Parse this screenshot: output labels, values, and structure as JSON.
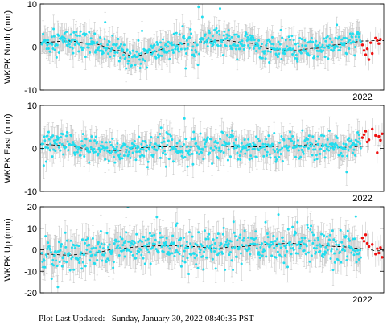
{
  "footer": {
    "label": "Plot Last Updated:",
    "value": "Sunday, January 30, 2022 08:40:35 PST"
  },
  "colors": {
    "point": "#22ddee",
    "recent_point": "#ee1111",
    "error_bar": "#c8c8c8",
    "model_line": "#000000"
  },
  "chart_data": [
    {
      "type": "scatter",
      "station": "WKPK",
      "ylabel": "WKPK North (mm)",
      "ylim": [
        -10,
        10
      ],
      "yticks": [
        -10,
        0,
        10
      ],
      "x_tick_label": "2022",
      "xlim": [
        2020.03,
        2022.12
      ],
      "model_points": [
        [
          2020.05,
          1.1
        ],
        [
          2020.2,
          1.4
        ],
        [
          2020.35,
          0.8
        ],
        [
          2020.5,
          -0.8
        ],
        [
          2020.6,
          -2.2
        ],
        [
          2020.7,
          -1.3
        ],
        [
          2020.85,
          0.5
        ],
        [
          2021.0,
          1.2
        ],
        [
          2021.15,
          1.5
        ],
        [
          2021.3,
          0.9
        ],
        [
          2021.45,
          -0.6
        ],
        [
          2021.55,
          -0.9
        ],
        [
          2021.7,
          -0.3
        ],
        [
          2021.85,
          0.6
        ],
        [
          2022.0,
          1.4
        ],
        [
          2022.08,
          1.5
        ]
      ],
      "noise_sd": 1.4,
      "error_bar_mm": 2.5,
      "recent_start": 2021.98,
      "recent_points": [
        [
          2021.99,
          0.5
        ],
        [
          2022.0,
          -0.8
        ],
        [
          2022.01,
          -1.8
        ],
        [
          2022.02,
          -0.4
        ],
        [
          2022.03,
          -2.9
        ],
        [
          2022.04,
          1.0
        ],
        [
          2022.05,
          -1.5
        ],
        [
          2022.07,
          2.1
        ],
        [
          2022.08,
          1.5
        ],
        [
          2022.09,
          0.8
        ],
        [
          2022.1,
          1.8
        ]
      ]
    },
    {
      "type": "scatter",
      "station": "WKPK",
      "ylabel": "WKPK East (mm)",
      "ylim": [
        -10,
        10
      ],
      "yticks": [
        -10,
        0,
        10
      ],
      "x_tick_label": "2022",
      "xlim": [
        2020.03,
        2022.12
      ],
      "model_points": [
        [
          2020.05,
          0.9
        ],
        [
          2020.2,
          0.6
        ],
        [
          2020.35,
          -0.3
        ],
        [
          2020.5,
          -0.5
        ],
        [
          2020.65,
          0.2
        ],
        [
          2020.8,
          0.4
        ],
        [
          2020.95,
          0.5
        ],
        [
          2021.1,
          0.6
        ],
        [
          2021.25,
          0.3
        ],
        [
          2021.4,
          0.4
        ],
        [
          2021.55,
          0.6
        ],
        [
          2021.7,
          0.9
        ],
        [
          2021.85,
          0.2
        ],
        [
          2022.0,
          0.5
        ],
        [
          2022.08,
          0.6
        ]
      ],
      "noise_sd": 1.6,
      "error_bar_mm": 2.5,
      "recent_start": 2021.98,
      "recent_points": [
        [
          2021.99,
          2.5
        ],
        [
          2022.0,
          3.2
        ],
        [
          2022.01,
          4.0
        ],
        [
          2022.02,
          1.5
        ],
        [
          2022.03,
          2.0
        ],
        [
          2022.05,
          4.5
        ],
        [
          2022.07,
          3.0
        ],
        [
          2022.08,
          -1.0
        ],
        [
          2022.09,
          2.8
        ],
        [
          2022.1,
          1.9
        ],
        [
          2022.11,
          3.4
        ]
      ]
    },
    {
      "type": "scatter",
      "station": "WKPK",
      "ylabel": "WKPK Up (mm)",
      "ylim": [
        -20,
        20
      ],
      "yticks": [
        -20,
        -10,
        0,
        10,
        20
      ],
      "x_tick_label": "2022",
      "xlim": [
        2020.03,
        2022.12
      ],
      "model_points": [
        [
          2020.05,
          -2.0
        ],
        [
          2020.2,
          -2.5
        ],
        [
          2020.35,
          -1.5
        ],
        [
          2020.5,
          0.5
        ],
        [
          2020.65,
          1.5
        ],
        [
          2020.8,
          2.0
        ],
        [
          2020.95,
          1.5
        ],
        [
          2021.1,
          0.8
        ],
        [
          2021.25,
          1.5
        ],
        [
          2021.4,
          2.5
        ],
        [
          2021.55,
          3.0
        ],
        [
          2021.7,
          2.2
        ],
        [
          2021.85,
          1.5
        ],
        [
          2022.0,
          0.5
        ],
        [
          2022.08,
          -0.5
        ]
      ],
      "noise_sd": 4.0,
      "error_bar_mm": 6.0,
      "recent_start": 2021.98,
      "recent_points": [
        [
          2021.99,
          5.5
        ],
        [
          2022.0,
          4.0
        ],
        [
          2022.01,
          7.0
        ],
        [
          2022.02,
          3.0
        ],
        [
          2022.03,
          1.5
        ],
        [
          2022.05,
          2.5
        ],
        [
          2022.07,
          -2.0
        ],
        [
          2022.08,
          0.5
        ],
        [
          2022.09,
          -1.5
        ],
        [
          2022.1,
          1.0
        ],
        [
          2022.11,
          -3.5
        ]
      ]
    }
  ]
}
